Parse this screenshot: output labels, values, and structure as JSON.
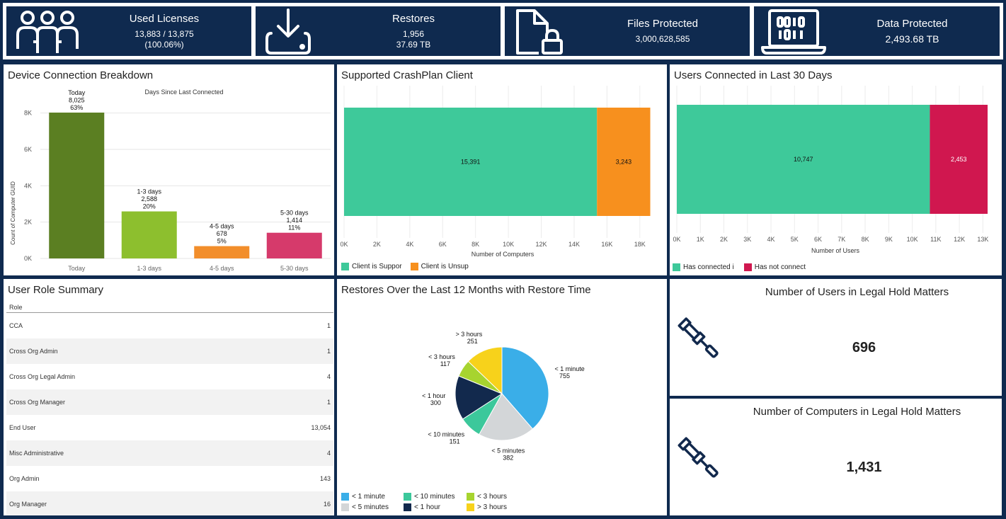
{
  "kpis": {
    "used_licenses": {
      "title": "Used Licenses",
      "line1": "13,883 / 13,875",
      "line2": "(100.06%)",
      "icon": "users-icon"
    },
    "restores": {
      "title": "Restores",
      "line1": "1,956",
      "line2": "37.69 TB",
      "icon": "download-tray-icon"
    },
    "files_protected": {
      "title": "Files Protected",
      "line1": "3,000,628,585",
      "icon": "file-lock-icon"
    },
    "data_protected": {
      "title": "Data Protected",
      "line1": "2,493.68 TB",
      "icon": "binary-laptop-icon"
    }
  },
  "device_connection": {
    "title": "Device Connection Breakdown",
    "chart_data": {
      "type": "bar",
      "title": "Days Since Last Connected",
      "ylabel": "Count of Computer GUID",
      "xlabel": "",
      "categories": [
        "Today",
        "1-3 days",
        "4-5 days",
        "5-30 days"
      ],
      "values": [
        8025,
        2588,
        678,
        1414
      ],
      "percents": [
        "63%",
        "20%",
        "5%",
        "11%"
      ],
      "value_labels": [
        "8,025",
        "2,588",
        "678",
        "1,414"
      ],
      "colors": [
        "#5b7f22",
        "#8dbf2e",
        "#f28e2b",
        "#d63a6b"
      ],
      "ylim": [
        0,
        9000
      ],
      "yticks": [
        0,
        2000,
        4000,
        6000,
        8000
      ],
      "ytick_labels": [
        "0K",
        "2K",
        "4K",
        "6K",
        "8K"
      ]
    }
  },
  "crashplan_client": {
    "title": "Supported CrashPlan Client",
    "chart_data": {
      "type": "bar",
      "orientation": "horizontal-stacked",
      "xlabel": "Number of Computers",
      "series": [
        {
          "name": "Client is Suppor",
          "value": 15391,
          "label": "15,391",
          "color": "#3ec99a"
        },
        {
          "name": "Client is Unsup",
          "value": 3243,
          "label": "3,243",
          "color": "#f7901e"
        }
      ],
      "xlim": [
        0,
        19000
      ],
      "xticks": [
        0,
        2000,
        4000,
        6000,
        8000,
        10000,
        12000,
        14000,
        16000,
        18000
      ],
      "xtick_labels": [
        "0K",
        "2K",
        "4K",
        "6K",
        "8K",
        "10K",
        "12K",
        "14K",
        "16K",
        "18K"
      ]
    }
  },
  "users_connected": {
    "title": "Users Connected in Last 30 Days",
    "chart_data": {
      "type": "bar",
      "orientation": "horizontal-stacked",
      "xlabel": "Number of Users",
      "series": [
        {
          "name": "Has connected i",
          "value": 10747,
          "label": "10,747",
          "color": "#3ec99a"
        },
        {
          "name": "Has not connect",
          "value": 2453,
          "label": "2,453",
          "color": "#d0174f"
        }
      ],
      "xlim": [
        0,
        13500
      ],
      "xticks": [
        0,
        1000,
        2000,
        3000,
        4000,
        5000,
        6000,
        7000,
        8000,
        9000,
        10000,
        11000,
        12000,
        13000
      ],
      "xtick_labels": [
        "0K",
        "1K",
        "2K",
        "3K",
        "4K",
        "5K",
        "6K",
        "7K",
        "8K",
        "9K",
        "10K",
        "11K",
        "12K",
        "13K"
      ]
    }
  },
  "user_roles": {
    "title": "User Role Summary",
    "header": "Role",
    "rows": [
      {
        "role": "CCA",
        "count": "1"
      },
      {
        "role": "Cross Org Admin",
        "count": "1"
      },
      {
        "role": "Cross Org Legal Admin",
        "count": "4"
      },
      {
        "role": "Cross Org Manager",
        "count": "1"
      },
      {
        "role": "End User",
        "count": "13,054"
      },
      {
        "role": "Misc Administrative",
        "count": "4"
      },
      {
        "role": "Org Admin",
        "count": "143"
      },
      {
        "role": "Org Manager",
        "count": "16"
      }
    ]
  },
  "restores_12m": {
    "title": "Restores Over the Last 12 Months with Restore Time",
    "chart_data": {
      "type": "pie",
      "slices": [
        {
          "name": "< 1 minute",
          "value": 755,
          "label": "755",
          "color": "#3aaee8"
        },
        {
          "name": "< 5 minutes",
          "value": 382,
          "label": "382",
          "color": "#d3d6d8"
        },
        {
          "name": "< 10 minutes",
          "value": 151,
          "label": "151",
          "color": "#3cc89b"
        },
        {
          "name": "< 1 hour",
          "value": 300,
          "label": "300",
          "color": "#12294d"
        },
        {
          "name": "< 3 hours",
          "value": 117,
          "label": "117",
          "color": "#a7d42f"
        },
        {
          "name": "> 3 hours",
          "value": 251,
          "label": "251",
          "color": "#f7d21b"
        }
      ],
      "legend_order": [
        "< 1 minute",
        "< 10 minutes",
        "< 3 hours",
        "< 5 minutes",
        "< 1 hour",
        "> 3 hours"
      ]
    }
  },
  "legal_hold": {
    "users": {
      "title": "Number of Users in Legal Hold Matters",
      "value": "696",
      "icon": "gavel-icon"
    },
    "computers": {
      "title": "Number of Computers in Legal Hold Matters",
      "value": "1,431",
      "icon": "gavel-icon"
    }
  }
}
